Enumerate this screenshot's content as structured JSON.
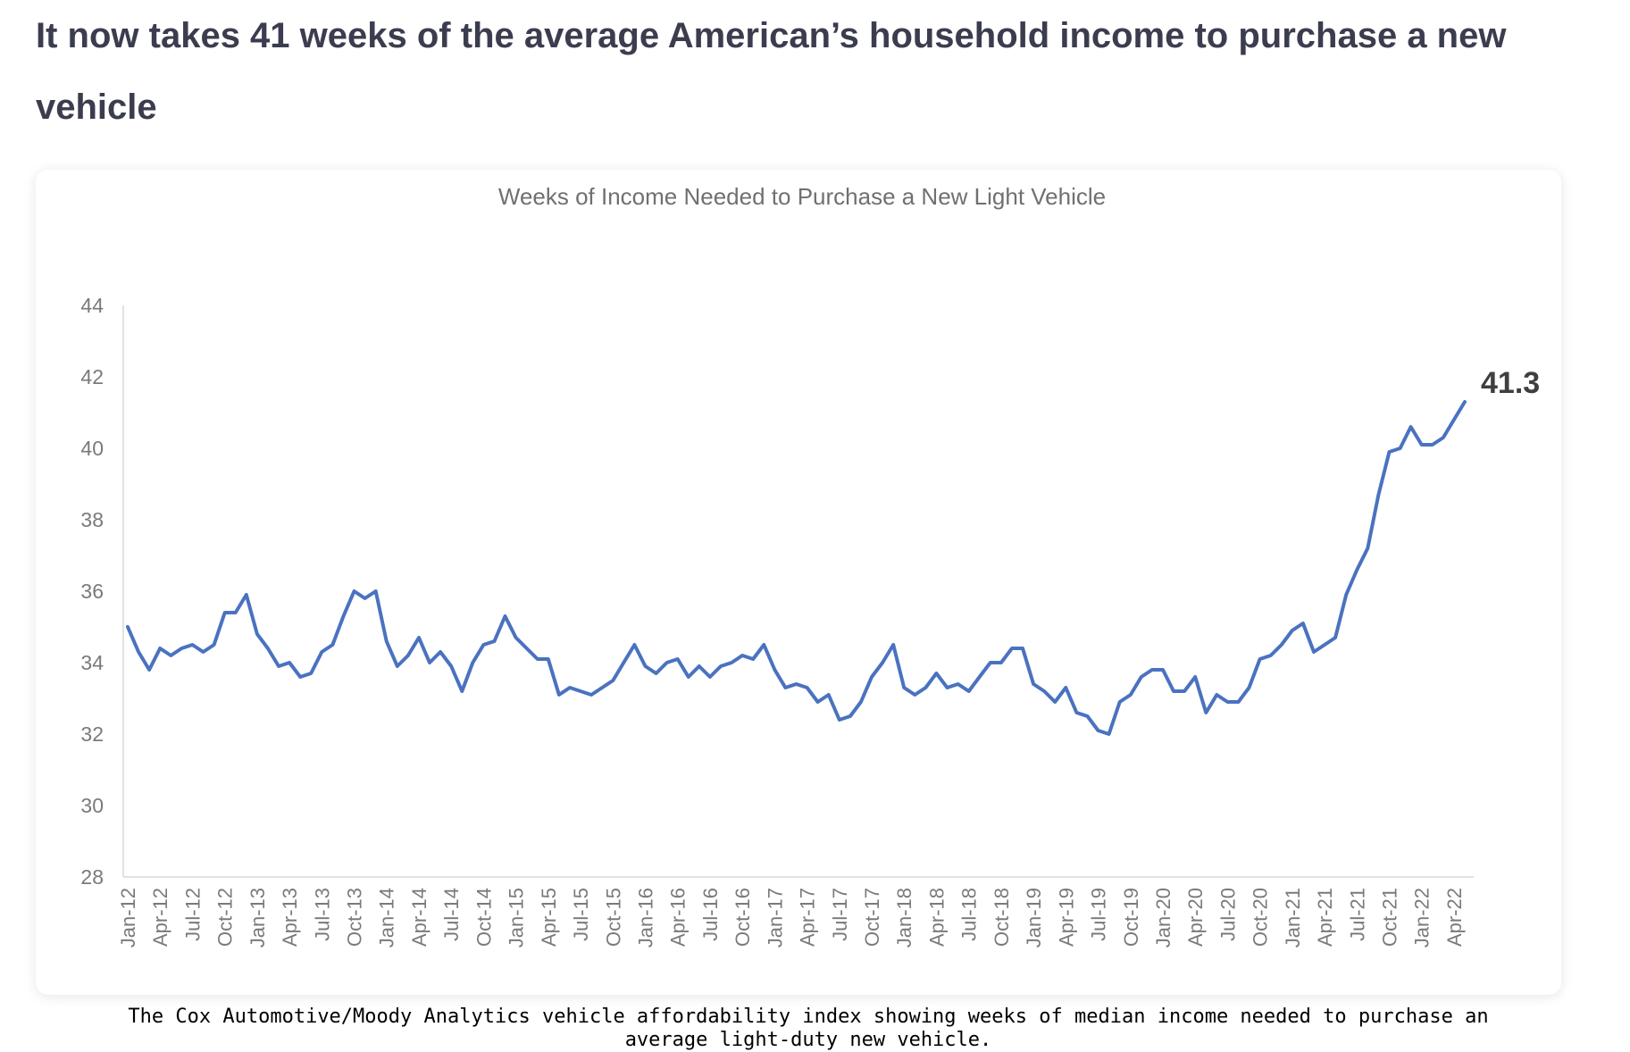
{
  "headline": "It now takes 41 weeks of the average American’s household income to purchase a new vehicle",
  "caption": "The Cox Automotive/Moody Analytics vehicle affordability index showing weeks of median income needed to purchase an average light-duty new vehicle.",
  "chart_data": {
    "type": "line",
    "title": "Weeks of Income Needed to Purchase a New Light Vehicle",
    "xlabel": "",
    "ylabel": "",
    "ylim": [
      28,
      44
    ],
    "yticks": [
      28,
      30,
      32,
      34,
      36,
      38,
      40,
      42,
      44
    ],
    "grid": false,
    "legend": "none",
    "line_color": "#4a72c0",
    "x_tick_labels": [
      "Jan-12",
      "Apr-12",
      "Jul-12",
      "Oct-12",
      "Jan-13",
      "Apr-13",
      "Jul-13",
      "Oct-13",
      "Jan-14",
      "Apr-14",
      "Jul-14",
      "Oct-14",
      "Jan-15",
      "Apr-15",
      "Jul-15",
      "Oct-15",
      "Jan-16",
      "Apr-16",
      "Jul-16",
      "Oct-16",
      "Jan-17",
      "Apr-17",
      "Jul-17",
      "Oct-17",
      "Jan-18",
      "Apr-18",
      "Jul-18",
      "Oct-18",
      "Jan-19",
      "Apr-19",
      "Jul-19",
      "Oct-19",
      "Jan-20",
      "Apr-20",
      "Jul-20",
      "Oct-20",
      "Jan-21",
      "Apr-21",
      "Jul-21",
      "Oct-21",
      "Jan-22",
      "Apr-22"
    ],
    "end_label": "41.3",
    "series": [
      {
        "start_month": "Jan-12",
        "values": [
          35.0,
          34.3,
          33.8,
          34.4,
          34.2,
          34.4,
          34.5,
          34.3,
          34.5,
          35.4,
          35.4,
          35.9,
          34.8,
          34.4,
          33.9,
          34.0,
          33.6,
          33.7,
          34.3,
          34.5,
          35.3,
          36.0,
          35.8,
          36.0,
          34.6,
          33.9,
          34.2,
          34.7,
          34.0,
          34.3,
          33.9,
          33.2,
          34.0,
          34.5,
          34.6,
          35.3,
          34.7,
          34.4,
          34.1,
          34.1,
          33.1,
          33.3,
          33.2,
          33.1,
          33.3,
          33.5,
          34.0,
          34.5,
          33.9,
          33.7,
          34.0,
          34.1,
          33.6,
          33.9,
          33.6,
          33.9,
          34.0,
          34.2,
          34.1,
          34.5,
          33.8,
          33.3,
          33.4,
          33.3,
          32.9,
          33.1,
          32.4,
          32.5,
          32.9,
          33.6,
          34.0,
          34.5,
          33.3,
          33.1,
          33.3,
          33.7,
          33.3,
          33.4,
          33.2,
          33.6,
          34.0,
          34.0,
          34.4,
          34.4,
          33.4,
          33.2,
          32.9,
          33.3,
          32.6,
          32.5,
          32.1,
          32.0,
          32.9,
          33.1,
          33.6,
          33.8,
          33.8,
          33.2,
          33.2,
          33.6,
          32.6,
          33.1,
          32.9,
          32.9,
          33.3,
          34.1,
          34.2,
          34.5,
          34.9,
          35.1,
          34.3,
          34.5,
          34.7,
          35.9,
          36.6,
          37.2,
          38.7,
          39.9,
          40.0,
          40.6,
          40.1,
          40.1,
          40.3,
          40.8,
          41.3
        ]
      }
    ]
  }
}
